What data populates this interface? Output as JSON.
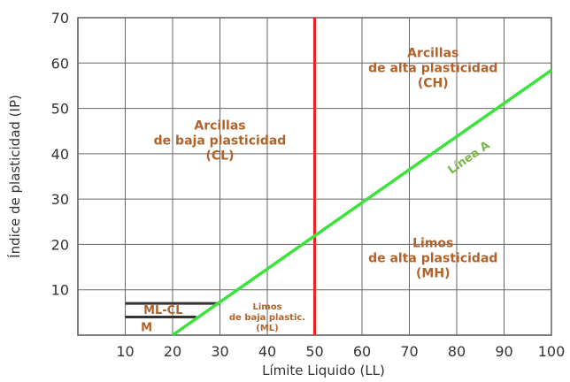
{
  "chart_data": {
    "type": "line",
    "xlabel": "Límite Liquido (LL)",
    "ylabel": "Índice de plasticidad (IP)",
    "xlim": [
      0,
      100
    ],
    "ylim": [
      0,
      70
    ],
    "x_ticks": [
      10,
      20,
      30,
      40,
      50,
      60,
      70,
      80,
      90,
      100
    ],
    "y_ticks": [
      10,
      20,
      30,
      40,
      50,
      60,
      70
    ],
    "grid": true,
    "series": [
      {
        "name": "Línea A",
        "color": "#39e33c",
        "x": [
          20,
          100
        ],
        "y": [
          0,
          58.4
        ]
      }
    ],
    "vertical_line": {
      "x": 50,
      "color": "#ee2222"
    },
    "hatch_lines": [
      {
        "x": [
          10,
          30
        ],
        "y": 7,
        "color": "#333333"
      },
      {
        "x": [
          10,
          25
        ],
        "y": 4,
        "color": "#333333"
      }
    ],
    "zones": [
      {
        "lines": [
          "Arcillas",
          "de baja plasticidad",
          "(CL)"
        ],
        "x": 30,
        "y": 43,
        "size": "large"
      },
      {
        "lines": [
          "Arcillas",
          "de alta plasticidad",
          "(CH)"
        ],
        "x": 75,
        "y": 59,
        "size": "large"
      },
      {
        "lines": [
          "Limos",
          "de alta plasticidad",
          "(MH)"
        ],
        "x": 75,
        "y": 17,
        "size": "large"
      },
      {
        "lines": [
          "Limos",
          "de baja plastic.",
          "(ML)"
        ],
        "x": 40,
        "y": 4,
        "size": "small"
      },
      {
        "lines": [
          "ML-CL"
        ],
        "x": 18,
        "y": 5.6,
        "size": "medium"
      },
      {
        "lines": [
          "M"
        ],
        "x": 14.5,
        "y": 1.8,
        "size": "medium"
      }
    ],
    "line_label": {
      "text": "Línea A",
      "x": 83,
      "y": 38.5
    }
  }
}
